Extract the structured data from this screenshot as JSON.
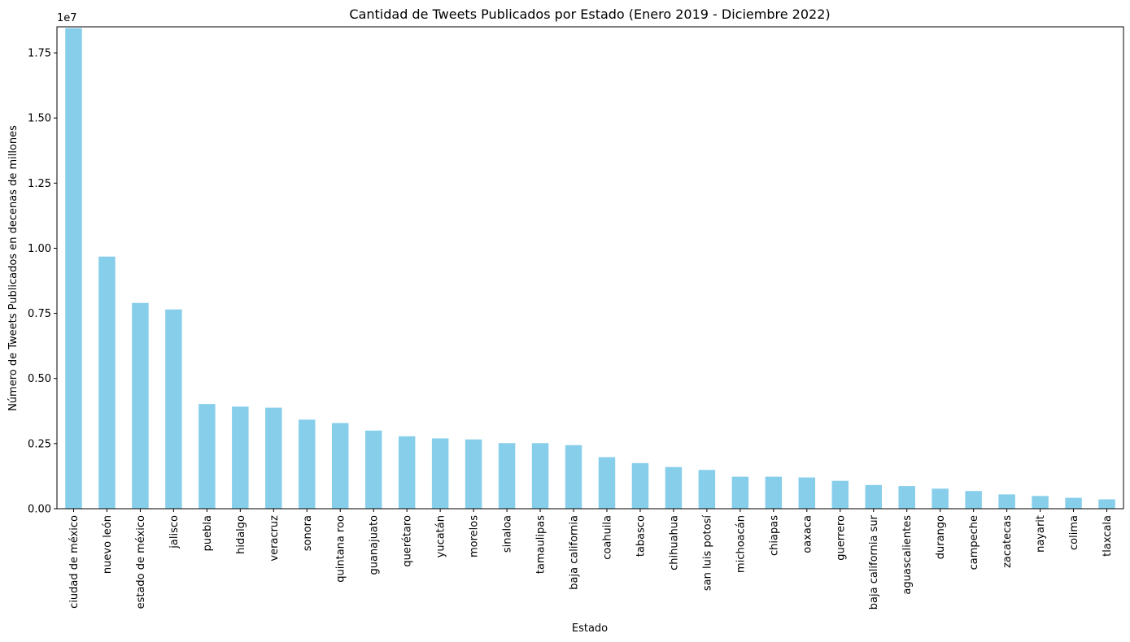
{
  "chart_data": {
    "type": "bar",
    "title": "Cantidad de Tweets Publicados por Estado (Enero 2019 - Diciembre 2022)",
    "xlabel": "Estado",
    "ylabel": "Número de Tweets Publicados en decenas de millones",
    "y_offset_label": "1e7",
    "ylim": [
      0,
      18500000
    ],
    "yticks": [
      0,
      2500000,
      5000000,
      7500000,
      10000000,
      12500000,
      15000000,
      17500000
    ],
    "ytick_labels": [
      "0.00",
      "0.25",
      "0.50",
      "0.75",
      "1.00",
      "1.25",
      "1.50",
      "1.75"
    ],
    "bar_color": "#87CEEB",
    "grid": false,
    "categories": [
      "ciudad de méxico",
      "nuevo león",
      "estado de méxico",
      "jalisco",
      "puebla",
      "hidalgo",
      "veracruz",
      "sonora",
      "quintana roo",
      "guanajuato",
      "querétaro",
      "yucatán",
      "morelos",
      "sinaloa",
      "tamaulipas",
      "baja california",
      "coahuila",
      "tabasco",
      "chihuahua",
      "san luis potosí",
      "michoacán",
      "chiapas",
      "oaxaca",
      "guerrero",
      "baja california sur",
      "aguascalientes",
      "durango",
      "campeche",
      "zacatecas",
      "nayarit",
      "colima",
      "tlaxcala"
    ],
    "values": [
      18450000,
      9680000,
      7900000,
      7650000,
      4020000,
      3920000,
      3880000,
      3420000,
      3290000,
      3000000,
      2780000,
      2700000,
      2660000,
      2520000,
      2520000,
      2440000,
      1980000,
      1750000,
      1600000,
      1490000,
      1230000,
      1230000,
      1200000,
      1070000,
      910000,
      870000,
      770000,
      680000,
      550000,
      490000,
      420000,
      360000
    ]
  }
}
